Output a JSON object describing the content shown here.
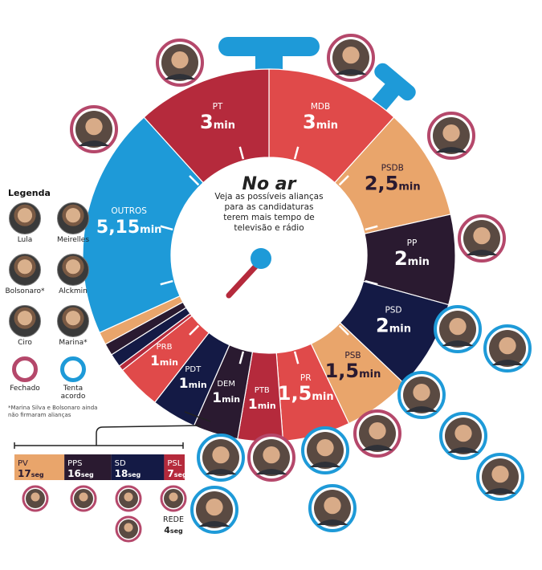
{
  "title": "No ar",
  "subtitle": "Veja as possíveis alianças para as candidaturas terem mais tempo de televisão e rádio",
  "colors": {
    "red": "#e04a4a",
    "darkred": "#b52a3c",
    "peach": "#e9a56b",
    "dark": "#2a1a30",
    "navy": "#141a45",
    "blue": "#1e9ad8",
    "ring_closed": "#b5486b",
    "ring_trying": "#1e9ad8"
  },
  "chart_data": {
    "type": "pie",
    "unit": "min",
    "slices": [
      {
        "party": "MDB",
        "value": 3,
        "label": "3min",
        "color": "#e04a4a",
        "text_color": "#ffffff",
        "allies": [
          "Meirelles"
        ]
      },
      {
        "party": "PSDB",
        "value": 2.5,
        "label": "2,5min",
        "color": "#e9a56b",
        "text_color": "#2a1a30",
        "allies": [
          "Alckmin"
        ]
      },
      {
        "party": "PP",
        "value": 2,
        "label": "2min",
        "color": "#2a1a30",
        "text_color": "#ffffff",
        "allies": [
          "Ciro"
        ]
      },
      {
        "party": "PSD",
        "value": 2,
        "label": "2min",
        "color": "#141a45",
        "text_color": "#ffffff",
        "allies": [
          "Alckmin"
        ]
      },
      {
        "party": "PSB",
        "value": 1.5,
        "label": "1,5min",
        "color": "#e9a56b",
        "text_color": "#2a1a30",
        "allies": [
          "Ciro",
          "Lula"
        ]
      },
      {
        "party": "PR",
        "value": 1.5,
        "label": "1,5min",
        "color": "#e04a4a",
        "text_color": "#ffffff",
        "allies": [
          "Alckmin",
          "Ciro",
          "Lula"
        ]
      },
      {
        "party": "PTB",
        "value": 1,
        "label": "1min",
        "color": "#b52a3c",
        "text_color": "#ffffff",
        "allies": [
          "Alckmin"
        ]
      },
      {
        "party": "DEM",
        "value": 1,
        "label": "1min",
        "color": "#2a1a30",
        "text_color": "#ffffff",
        "allies": [
          "Alckmin",
          "Ciro"
        ]
      },
      {
        "party": "PDT",
        "value": 1,
        "label": "1min",
        "color": "#141a45",
        "text_color": "#ffffff",
        "allies": [
          "Ciro"
        ]
      },
      {
        "party": "PRB",
        "value": 1,
        "label": "1min",
        "color": "#e04a4a",
        "text_color": "#ffffff",
        "allies": [
          "Alckmin",
          "Meirelles"
        ]
      },
      {
        "party": "PSL",
        "value": 0.1167,
        "label": "",
        "color": "#b52a3c",
        "text_color": "#ffffff",
        "allies": []
      },
      {
        "party": "SD",
        "value": 0.3,
        "label": "",
        "color": "#141a45",
        "text_color": "#ffffff",
        "allies": []
      },
      {
        "party": "PPS",
        "value": 0.2667,
        "label": "",
        "color": "#2a1a30",
        "text_color": "#ffffff",
        "allies": []
      },
      {
        "party": "PV",
        "value": 0.2833,
        "label": "",
        "color": "#e9a56b",
        "text_color": "#2a1a30",
        "allies": []
      },
      {
        "party": "OUTROS",
        "value": 5.15,
        "label": "5,15min",
        "color": "#1e9ad8",
        "text_color": "#ffffff",
        "allies": []
      },
      {
        "party": "PT",
        "value": 3,
        "label": "3min",
        "color": "#b52a3c",
        "text_color": "#ffffff",
        "allies": [
          "Lula"
        ]
      }
    ],
    "small_parties": [
      {
        "party": "PV",
        "time": "17seg",
        "seconds": 17,
        "color": "#e9a56b",
        "text_color": "#2a1a30"
      },
      {
        "party": "PPS",
        "time": "16seg",
        "seconds": 16,
        "color": "#2a1a30",
        "text_color": "#ffffff"
      },
      {
        "party": "SD",
        "time": "18seg",
        "seconds": 18,
        "color": "#141a45",
        "text_color": "#ffffff"
      },
      {
        "party": "PSL",
        "time": "7seg",
        "seconds": 7,
        "color": "#b52a3c",
        "text_color": "#ffffff"
      }
    ],
    "rede": {
      "party": "REDE",
      "time": "4seg",
      "seconds": 4
    }
  },
  "legend": {
    "title": "Legenda",
    "candidates": [
      "Lula",
      "Meirelles",
      "Bolsonaro*",
      "Alckmin",
      "Ciro",
      "Marina*"
    ],
    "status_closed": "Fechado",
    "status_trying": "Tenta acordo",
    "footnote": "*Marina Silva e Bolsonaro ainda não firmaram alianças"
  }
}
